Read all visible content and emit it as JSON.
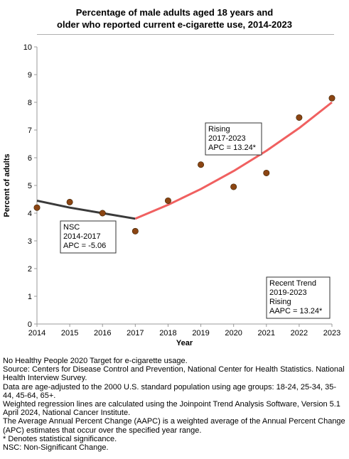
{
  "title_lines": [
    "Percentage of male adults aged 18 years and",
    "older who reported current e-cigarette use, 2014-2023"
  ],
  "chart_data": {
    "type": "scatter",
    "title": "Percentage of male adults aged 18 years and older who reported current e-cigarette use, 2014-2023",
    "xlabel": "Year",
    "ylabel": "Percent of adults",
    "xlim": [
      2014,
      2023
    ],
    "ylim": [
      0,
      10
    ],
    "x_ticks": [
      "2014",
      "2015",
      "2016",
      "2017",
      "2018",
      "2019",
      "2020",
      "2021",
      "2022",
      "2023"
    ],
    "y_ticks": [
      "0",
      "1",
      "2",
      "3",
      "4",
      "5",
      "6",
      "7",
      "8",
      "9",
      "10"
    ],
    "grid": false,
    "points": {
      "x": [
        2014,
        2015,
        2016,
        2017,
        2018,
        2019,
        2020,
        2021,
        2022,
        2023
      ],
      "y": [
        4.2,
        4.4,
        4.0,
        3.35,
        4.45,
        5.75,
        4.95,
        5.45,
        7.45,
        8.15
      ],
      "color": "#8b4513"
    },
    "trend_segments": [
      {
        "x": [
          2014,
          2015,
          2016,
          2017
        ],
        "y": [
          4.45,
          4.2,
          4.0,
          3.8
        ],
        "color": "#3a3a3a"
      },
      {
        "x": [
          2017,
          2018,
          2019,
          2020,
          2021,
          2022,
          2023
        ],
        "y": [
          3.8,
          4.3,
          4.87,
          5.52,
          6.25,
          7.07,
          8.0
        ],
        "color": "#f06060"
      }
    ],
    "annotations": [
      {
        "lines": [
          "NSC",
          "2014-2017",
          "APC = -5.06"
        ]
      },
      {
        "lines": [
          "Rising",
          "2017-2023",
          "APC = 13.24*"
        ]
      },
      {
        "lines": [
          "Recent Trend",
          "2019-2023",
          "Rising",
          "AAPC = 13.24*"
        ]
      }
    ]
  },
  "notes": [
    "No Healthy People 2020 Target for e-cigarette usage.",
    "Source: Centers for Disease Control and Prevention, National Center for Health Statistics. National Health Interview Survey.",
    "Data are age-adjusted to the 2000 U.S. standard population using age groups: 18-24, 25-34, 35-44, 45-64, 65+.",
    "Weighted regression lines are calculated using the Joinpoint Trend Analysis Software, Version 5.1 April 2024, National Cancer Institute.",
    "The Average Annual Percent Change (AAPC) is a weighted average of the Annual Percent Change (APC) estimates that occur over the specified year range.",
    "* Denotes statistical significance.",
    "NSC: Non-Significant Change."
  ]
}
